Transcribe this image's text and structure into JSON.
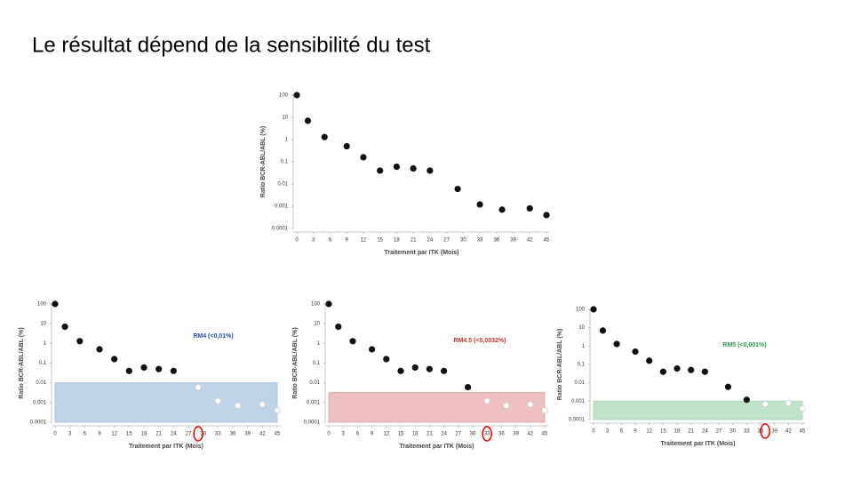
{
  "title": "Le résultat dépend de la sensibilité du test",
  "chart_data": [
    {
      "type": "scatter",
      "x_label": "Traitement par ITK (Mois)",
      "y_label": "Ratio BCR-ABL/ABL (%)",
      "x": [
        0,
        2,
        5,
        9,
        12,
        15,
        18,
        21,
        24,
        29,
        33,
        37,
        42,
        45
      ],
      "values": [
        100,
        7,
        1.3,
        0.5,
        0.16,
        0.04,
        0.06,
        0.05,
        0.04,
        0.006,
        0.0012,
        0.0007,
        0.0008,
        0.0004
      ],
      "xlim": [
        0,
        45
      ],
      "xticks": [
        0,
        3,
        6,
        9,
        12,
        15,
        18,
        21,
        24,
        27,
        30,
        33,
        36,
        39,
        42,
        45
      ],
      "ylim": [
        0.0001,
        100
      ],
      "yticks": [
        100,
        10,
        1,
        0.1,
        0.01,
        0.001,
        0.0001
      ],
      "yscale": "log",
      "color": "#111111"
    },
    {
      "type": "scatter",
      "x_label": "Traitement par ITK (Mois)",
      "y_label": "Ratio BCR-ABL/ABL (%)",
      "x": [
        0,
        2,
        5,
        9,
        12,
        15,
        18,
        21,
        24,
        29,
        33,
        37,
        42,
        45
      ],
      "values": [
        100,
        7,
        1.3,
        0.5,
        0.16,
        0.04,
        0.06,
        0.05,
        0.04,
        0.006,
        0.0012,
        0.0007,
        0.0008,
        0.0004
      ],
      "xlim": [
        0,
        45
      ],
      "xticks": [
        0,
        3,
        6,
        9,
        12,
        15,
        18,
        21,
        24,
        27,
        30,
        33,
        36,
        39,
        42,
        45
      ],
      "ylim": [
        0.0001,
        100
      ],
      "yticks": [
        100,
        10,
        1,
        0.1,
        0.01,
        0.001,
        0.0001
      ],
      "yscale": "log",
      "color": "#111111",
      "threshold": 0.01,
      "threshold_label": "RM4 (<0,01%)",
      "threshold_color": "#1f4e9c",
      "band_color": "#a9c4e0"
    },
    {
      "type": "scatter",
      "x_label": "Traitement par ITK (Mois)",
      "y_label": "Ratio BCR-ABL/ABL (%)",
      "x": [
        0,
        2,
        5,
        9,
        12,
        15,
        18,
        21,
        24,
        29,
        33,
        37,
        42,
        45
      ],
      "values": [
        100,
        7,
        1.3,
        0.5,
        0.16,
        0.04,
        0.06,
        0.05,
        0.04,
        0.006,
        0.0012,
        0.0007,
        0.0008,
        0.0004
      ],
      "xlim": [
        0,
        45
      ],
      "xticks": [
        0,
        3,
        6,
        9,
        12,
        15,
        18,
        21,
        24,
        27,
        30,
        33,
        36,
        39,
        42,
        45
      ],
      "ylim": [
        0.0001,
        100
      ],
      "yticks": [
        100,
        10,
        1,
        0.1,
        0.01,
        0.001,
        0.0001
      ],
      "yscale": "log",
      "color": "#111111",
      "threshold": 0.0032,
      "threshold_label": "RM4.5 (<0,0032%)",
      "threshold_color": "#c0392b",
      "band_color": "#e8a9a9"
    },
    {
      "type": "scatter",
      "x_label": "Traitement par ITK (Mois)",
      "y_label": "Ratio BCR-ABL/ABL (%)",
      "x": [
        0,
        2,
        5,
        9,
        12,
        15,
        18,
        21,
        24,
        29,
        33,
        37,
        42,
        45
      ],
      "values": [
        100,
        7,
        1.3,
        0.5,
        0.16,
        0.04,
        0.06,
        0.05,
        0.04,
        0.006,
        0.0012,
        0.0007,
        0.0008,
        0.0004
      ],
      "xlim": [
        0,
        45
      ],
      "xticks": [
        0,
        3,
        6,
        9,
        12,
        15,
        18,
        21,
        24,
        27,
        30,
        33,
        36,
        39,
        42,
        45
      ],
      "ylim": [
        0.0001,
        100
      ],
      "yticks": [
        100,
        10,
        1,
        0.1,
        0.01,
        0.001,
        0.0001
      ],
      "yscale": "log",
      "color": "#111111",
      "threshold": 0.001,
      "threshold_label": "RM5 (<0,001%)",
      "threshold_color": "#2e9a4a",
      "band_color": "#a9d9b5"
    }
  ]
}
